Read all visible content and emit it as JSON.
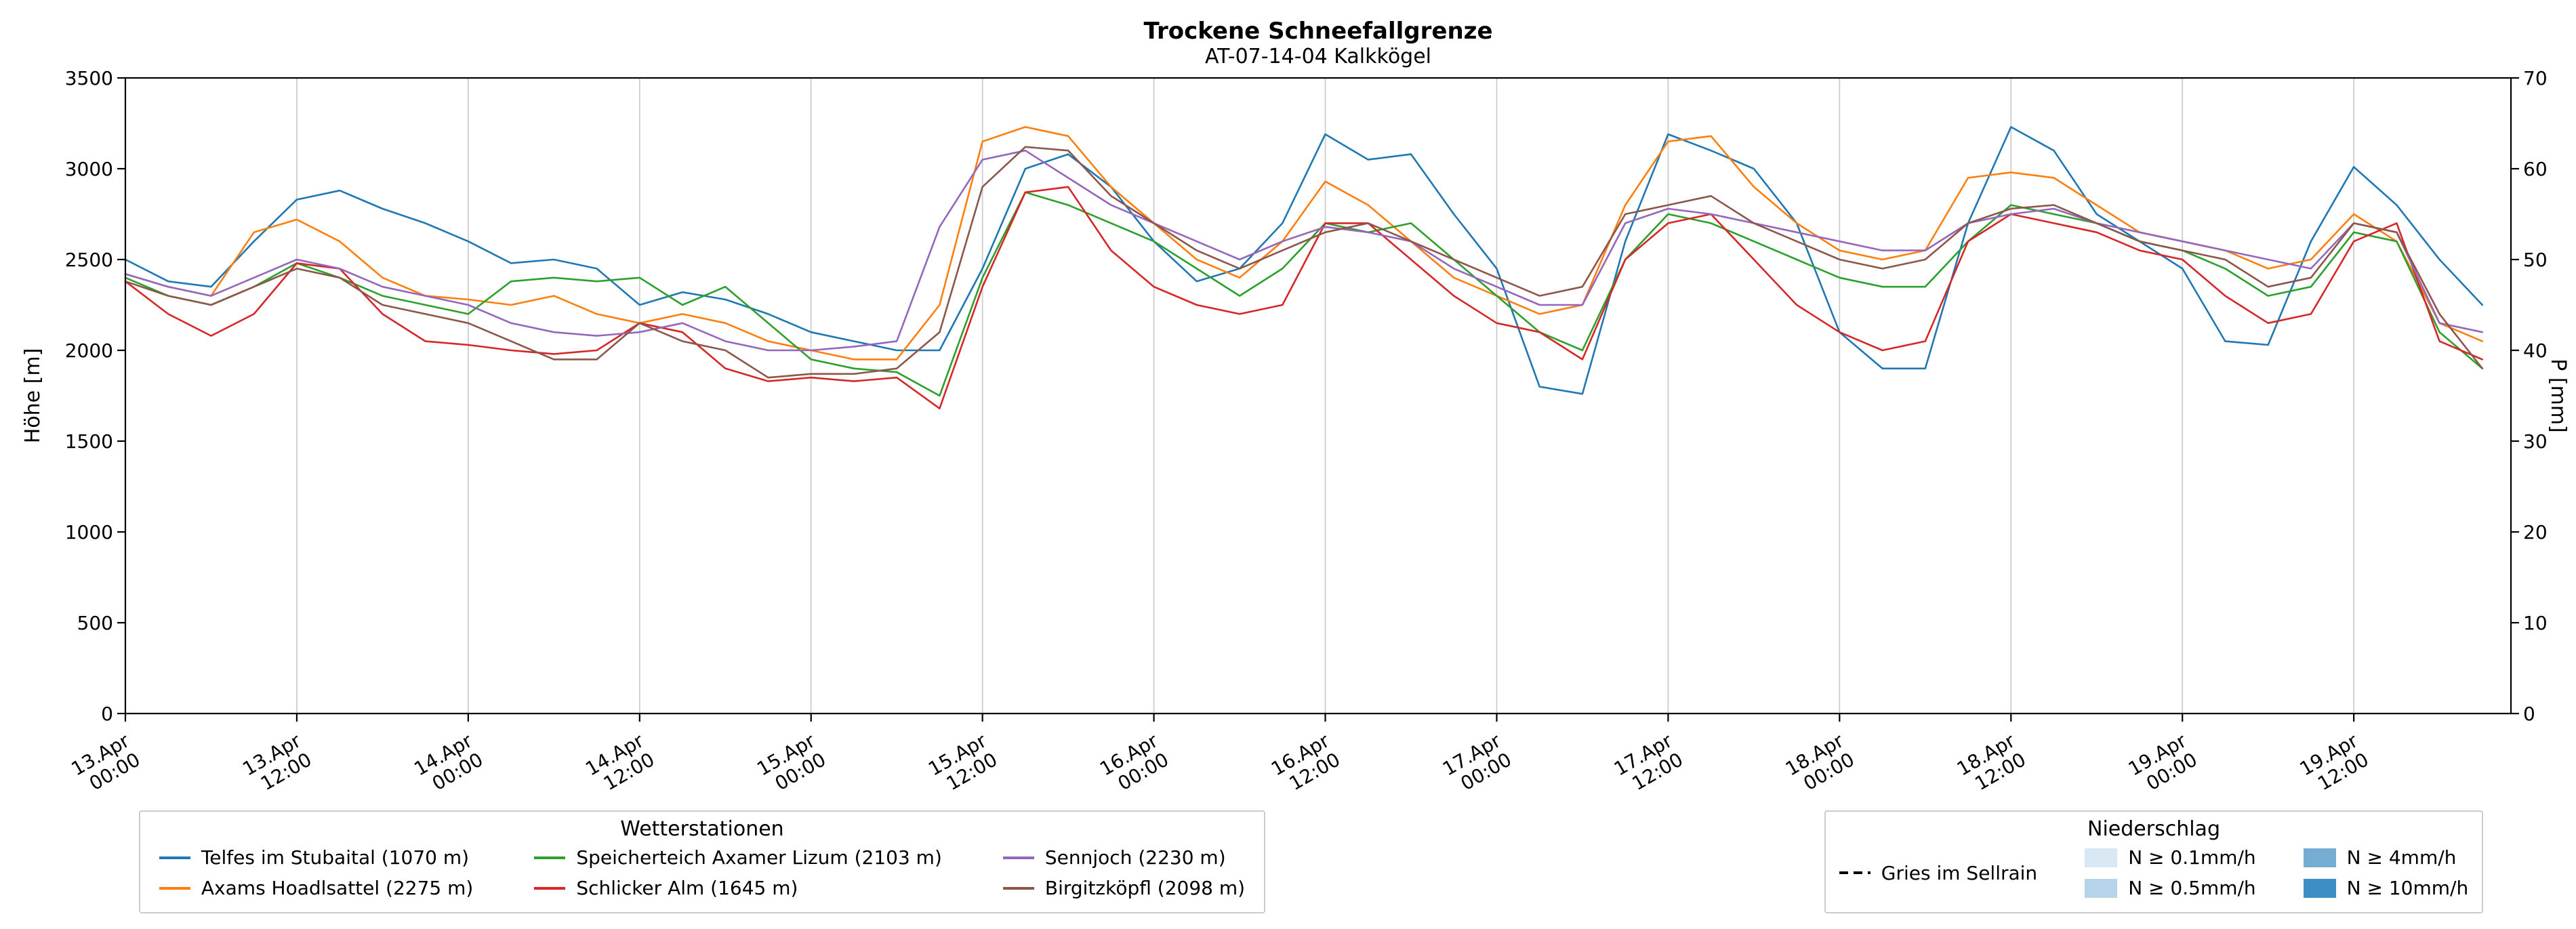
{
  "title": "Trockene Schneefallgrenze",
  "subtitle": "AT-07-14-04 Kalkkögel",
  "chart_data": {
    "type": "line",
    "title": "Trockene Schneefallgrenze",
    "subtitle": "AT-07-14-04 Kalkkögel",
    "x_unit": "hours since 13.Apr 00:00",
    "xlim": [
      0,
      167
    ],
    "x": [
      0,
      3,
      6,
      9,
      12,
      15,
      18,
      21,
      24,
      27,
      30,
      33,
      36,
      39,
      42,
      45,
      48,
      51,
      54,
      57,
      60,
      63,
      66,
      69,
      72,
      75,
      78,
      81,
      84,
      87,
      90,
      93,
      96,
      99,
      102,
      105,
      108,
      111,
      114,
      117,
      120,
      123,
      126,
      129,
      132,
      135,
      138,
      141,
      144,
      147,
      150,
      153,
      156,
      159,
      162,
      165
    ],
    "x_ticks": [
      {
        "h": 0,
        "date": "13.Apr",
        "time": "00:00"
      },
      {
        "h": 12,
        "date": "13.Apr",
        "time": "12:00"
      },
      {
        "h": 24,
        "date": "14.Apr",
        "time": "00:00"
      },
      {
        "h": 36,
        "date": "14.Apr",
        "time": "12:00"
      },
      {
        "h": 48,
        "date": "15.Apr",
        "time": "00:00"
      },
      {
        "h": 60,
        "date": "15.Apr",
        "time": "12:00"
      },
      {
        "h": 72,
        "date": "16.Apr",
        "time": "00:00"
      },
      {
        "h": 84,
        "date": "16.Apr",
        "time": "12:00"
      },
      {
        "h": 96,
        "date": "17.Apr",
        "time": "00:00"
      },
      {
        "h": 108,
        "date": "17.Apr",
        "time": "12:00"
      },
      {
        "h": 120,
        "date": "18.Apr",
        "time": "00:00"
      },
      {
        "h": 132,
        "date": "18.Apr",
        "time": "12:00"
      },
      {
        "h": 144,
        "date": "19.Apr",
        "time": "00:00"
      },
      {
        "h": 156,
        "date": "19.Apr",
        "time": "12:00"
      }
    ],
    "ylabel_left": "Höhe [m]",
    "ylim_left": [
      0,
      3500
    ],
    "yticks_left": [
      0,
      500,
      1000,
      1500,
      2000,
      2500,
      3000,
      3500
    ],
    "ylabel_right": "P [mm]",
    "ylim_right": [
      0,
      70
    ],
    "yticks_right": [
      0,
      10,
      20,
      30,
      40,
      50,
      60,
      70
    ],
    "grid": "vertical",
    "series": [
      {
        "name": "Telfes im Stubaital (1070 m)",
        "color": "#1f77b4",
        "values": [
          2500,
          2380,
          2350,
          2600,
          2830,
          2880,
          2780,
          2700,
          2600,
          2480,
          2500,
          2450,
          2250,
          2320,
          2280,
          2200,
          2100,
          2050,
          2000,
          2000,
          2450,
          3000,
          3080,
          2900,
          2600,
          2380,
          2450,
          2700,
          3190,
          3050,
          3080,
          2750,
          2450,
          1800,
          1760,
          2600,
          3190,
          3100,
          3000,
          2700,
          2100,
          1900,
          1900,
          2700,
          3230,
          3100,
          2750,
          2600,
          2450,
          2050,
          2030,
          2600,
          3010,
          2800,
          2500,
          2250
        ]
      },
      {
        "name": "Axams Hoadlsattel (2275 m)",
        "color": "#ff7f0e",
        "values": [
          2420,
          2350,
          2300,
          2650,
          2720,
          2600,
          2400,
          2300,
          2280,
          2250,
          2300,
          2200,
          2150,
          2200,
          2150,
          2050,
          2000,
          1950,
          1950,
          2250,
          3150,
          3230,
          3180,
          2900,
          2700,
          2500,
          2400,
          2600,
          2930,
          2800,
          2600,
          2400,
          2300,
          2200,
          2250,
          2800,
          3150,
          3180,
          2900,
          2700,
          2550,
          2500,
          2550,
          2950,
          2980,
          2950,
          2800,
          2650,
          2600,
          2550,
          2450,
          2500,
          2750,
          2600,
          2150,
          2050
        ]
      },
      {
        "name": "Speicherteich Axamer Lizum (2103 m)",
        "color": "#2ca02c",
        "values": [
          2400,
          2300,
          2250,
          2350,
          2480,
          2400,
          2300,
          2250,
          2200,
          2380,
          2400,
          2380,
          2400,
          2250,
          2350,
          2150,
          1950,
          1900,
          1880,
          1750,
          2400,
          2870,
          2800,
          2700,
          2600,
          2450,
          2300,
          2450,
          2700,
          2650,
          2700,
          2500,
          2300,
          2100,
          2000,
          2500,
          2750,
          2700,
          2600,
          2500,
          2400,
          2350,
          2350,
          2600,
          2800,
          2750,
          2700,
          2600,
          2550,
          2450,
          2300,
          2350,
          2650,
          2600,
          2100,
          1900
        ]
      },
      {
        "name": "Schlicker Alm (1645 m)",
        "color": "#d62728",
        "values": [
          2380,
          2200,
          2080,
          2200,
          2480,
          2450,
          2200,
          2050,
          2030,
          2000,
          1980,
          2000,
          2150,
          2100,
          1900,
          1830,
          1850,
          1830,
          1850,
          1680,
          2350,
          2870,
          2900,
          2550,
          2350,
          2250,
          2200,
          2250,
          2700,
          2700,
          2500,
          2300,
          2150,
          2100,
          1950,
          2500,
          2700,
          2750,
          2500,
          2250,
          2100,
          2000,
          2050,
          2600,
          2750,
          2700,
          2650,
          2550,
          2500,
          2300,
          2150,
          2200,
          2600,
          2700,
          2050,
          1950
        ]
      },
      {
        "name": "Sennjoch (2230 m)",
        "color": "#9467bd",
        "values": [
          2420,
          2350,
          2300,
          2400,
          2500,
          2450,
          2350,
          2300,
          2250,
          2150,
          2100,
          2080,
          2100,
          2150,
          2050,
          2000,
          2000,
          2020,
          2050,
          2680,
          3050,
          3100,
          2950,
          2800,
          2700,
          2600,
          2500,
          2600,
          2680,
          2650,
          2600,
          2450,
          2350,
          2250,
          2250,
          2700,
          2780,
          2750,
          2700,
          2650,
          2600,
          2550,
          2550,
          2700,
          2750,
          2780,
          2700,
          2650,
          2600,
          2550,
          2500,
          2450,
          2700,
          2650,
          2150,
          2100
        ]
      },
      {
        "name": "Birgitzköpfl (2098 m)",
        "color": "#8c564b",
        "values": [
          2380,
          2300,
          2250,
          2350,
          2450,
          2400,
          2250,
          2200,
          2150,
          2050,
          1950,
          1950,
          2150,
          2050,
          2000,
          1850,
          1870,
          1870,
          1900,
          2100,
          2900,
          3120,
          3100,
          2850,
          2700,
          2550,
          2450,
          2550,
          2650,
          2700,
          2600,
          2500,
          2400,
          2300,
          2350,
          2750,
          2800,
          2850,
          2700,
          2600,
          2500,
          2450,
          2500,
          2700,
          2780,
          2800,
          2700,
          2600,
          2550,
          2500,
          2350,
          2400,
          2700,
          2650,
          2200,
          1900
        ]
      }
    ]
  },
  "legend_stations": {
    "title": "Wetterstationen",
    "items": [
      {
        "label": "Telfes im Stubaital (1070 m)",
        "color": "#1f77b4"
      },
      {
        "label": "Axams Hoadlsattel (2275 m)",
        "color": "#ff7f0e"
      },
      {
        "label": "Speicherteich Axamer Lizum (2103 m)",
        "color": "#2ca02c"
      },
      {
        "label": "Schlicker Alm (1645 m)",
        "color": "#d62728"
      },
      {
        "label": "Sennjoch (2230 m)",
        "color": "#9467bd"
      },
      {
        "label": "Birgitzköpfl (2098 m)",
        "color": "#8c564b"
      }
    ]
  },
  "legend_precip": {
    "title": "Niederschlag",
    "line_item": {
      "label": "Gries im Sellrain",
      "color": "#000000",
      "style": "dashed"
    },
    "swatches": [
      {
        "label": "N ≥ 0.1mm/h",
        "color": "#d9e8f5"
      },
      {
        "label": "N ≥ 0.5mm/h",
        "color": "#b5d4ea"
      },
      {
        "label": "N ≥ 4mm/h",
        "color": "#74add1"
      },
      {
        "label": "N ≥ 10mm/h",
        "color": "#3d8ec4"
      }
    ]
  }
}
